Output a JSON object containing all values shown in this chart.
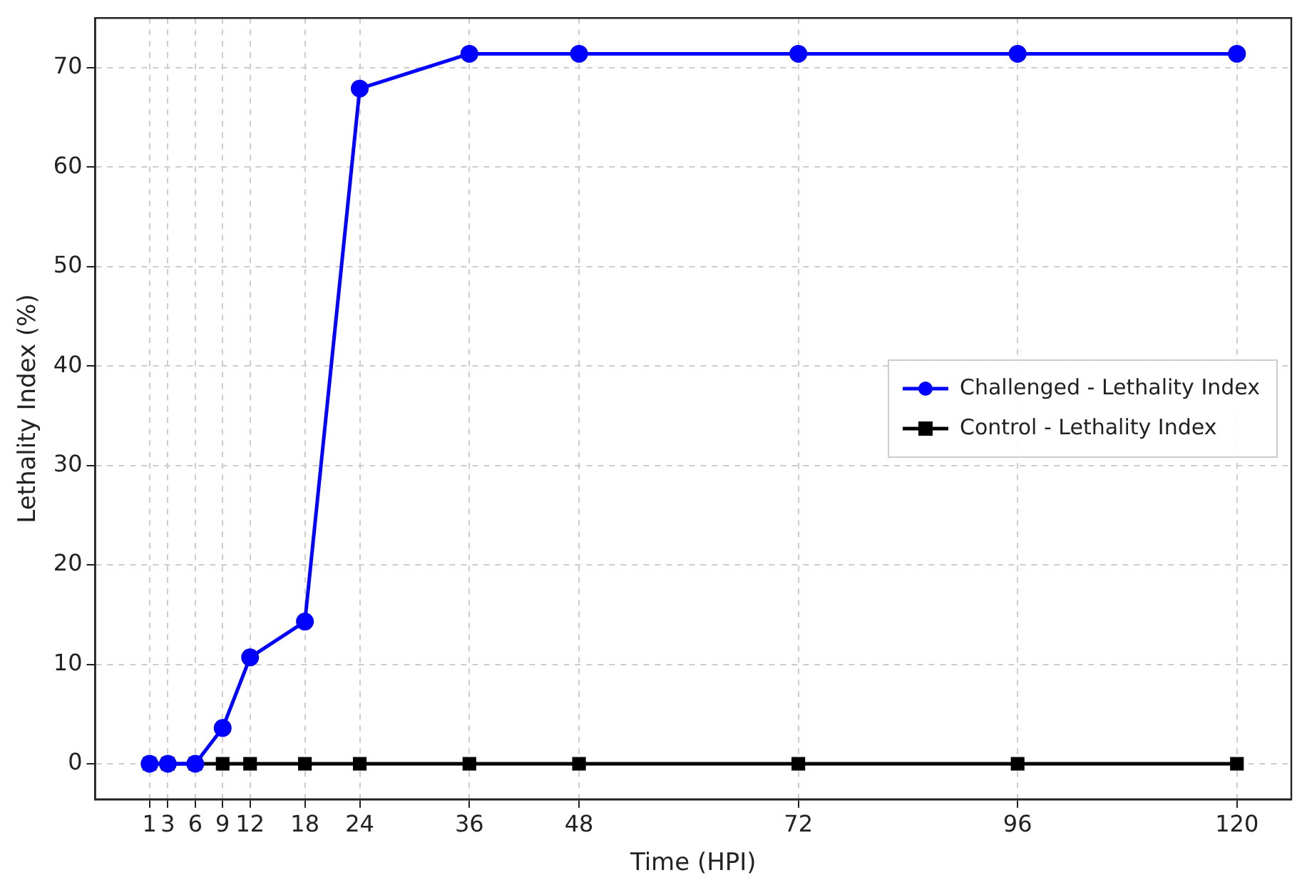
{
  "chart_data": {
    "type": "line",
    "xlabel": "Time (HPI)",
    "ylabel": "Lethality Index (%)",
    "x": [
      1,
      3,
      6,
      9,
      12,
      18,
      24,
      36,
      48,
      72,
      96,
      120
    ],
    "series": [
      {
        "name": "Challenged - Lethality Index",
        "color": "#0000ff",
        "marker": "circle",
        "values": [
          0,
          0,
          0,
          3.6,
          10.7,
          14.3,
          67.9,
          71.4,
          71.4,
          71.4,
          71.4,
          71.4
        ]
      },
      {
        "name": "Control - Lethality Index",
        "color": "#000000",
        "marker": "square",
        "values": [
          0,
          0,
          0,
          0,
          0,
          0,
          0,
          0,
          0,
          0,
          0,
          0
        ]
      }
    ],
    "xlim": [
      -4.95,
      125.95
    ],
    "xticks": [
      1,
      3,
      6,
      9,
      12,
      18,
      24,
      36,
      48,
      72,
      96,
      120
    ],
    "ylim": [
      -3.57,
      75
    ],
    "yticks": [
      0,
      10,
      20,
      30,
      40,
      50,
      60,
      70
    ],
    "grid": true,
    "legend": "center right",
    "line_style": "solid"
  }
}
